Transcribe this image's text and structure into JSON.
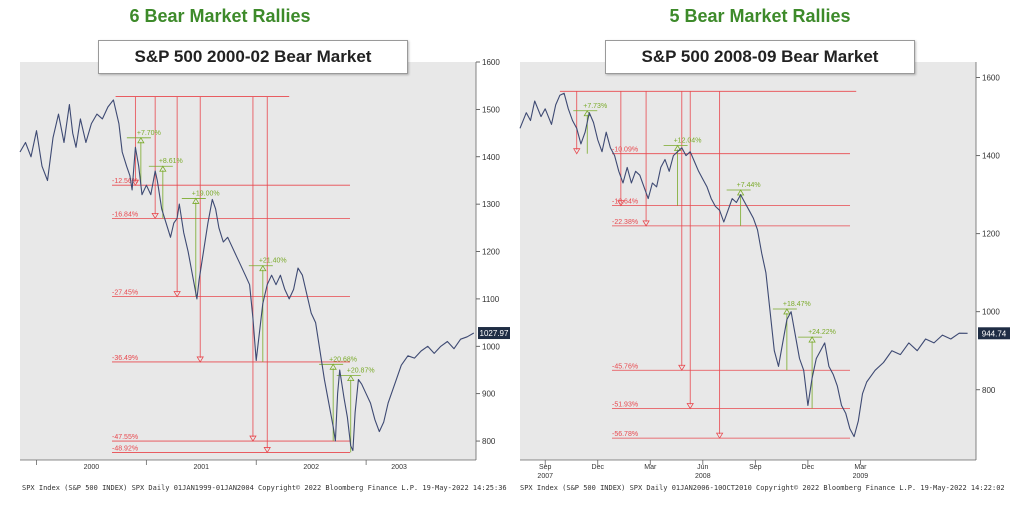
{
  "colors": {
    "headline": "#3d8a2a",
    "drop": "#e8484e",
    "rally": "#7aaa2a",
    "line": "#3e4a73",
    "bg": "#e8e8e8",
    "last": "#1f2d44"
  },
  "chart_data": [
    {
      "type": "line",
      "headline": "6 Bear Market Rallies",
      "title": "S&P 500 2000-02 Bear Market",
      "ylim": [
        760,
        1600
      ],
      "yticks": [
        800,
        900,
        1000,
        1100,
        1200,
        1300,
        1400,
        1500,
        1600
      ],
      "last_value": "1027.97",
      "xlim": [
        1999.85,
        2004.0
      ],
      "xtick_labels": [
        {
          "label": "2000",
          "x": 2000.5
        },
        {
          "label": "2001",
          "x": 2001.5
        },
        {
          "label": "2002",
          "x": 2002.5
        },
        {
          "label": "2003",
          "x": 2003.3
        }
      ],
      "x_dividers": [
        2000.0,
        2001.0,
        2002.0,
        2003.0
      ],
      "series": [
        {
          "points": [
            [
              1999.85,
              1410
            ],
            [
              1999.9,
              1430
            ],
            [
              1999.95,
              1400
            ],
            [
              2000.0,
              1455
            ],
            [
              2000.05,
              1380
            ],
            [
              2000.1,
              1350
            ],
            [
              2000.15,
              1440
            ],
            [
              2000.2,
              1490
            ],
            [
              2000.25,
              1430
            ],
            [
              2000.3,
              1510
            ],
            [
              2000.33,
              1450
            ],
            [
              2000.36,
              1420
            ],
            [
              2000.4,
              1480
            ],
            [
              2000.45,
              1430
            ],
            [
              2000.5,
              1470
            ],
            [
              2000.55,
              1490
            ],
            [
              2000.6,
              1480
            ],
            [
              2000.65,
              1505
            ],
            [
              2000.7,
              1520
            ],
            [
              2000.72,
              1500
            ],
            [
              2000.75,
              1470
            ],
            [
              2000.78,
              1410
            ],
            [
              2000.82,
              1380
            ],
            [
              2000.85,
              1360
            ],
            [
              2000.87,
              1330
            ],
            [
              2000.9,
              1420
            ],
            [
              2000.93,
              1380
            ],
            [
              2000.96,
              1320
            ],
            [
              2001.0,
              1340
            ],
            [
              2001.04,
              1320
            ],
            [
              2001.08,
              1370
            ],
            [
              2001.1,
              1350
            ],
            [
              2001.14,
              1290
            ],
            [
              2001.18,
              1260
            ],
            [
              2001.22,
              1230
            ],
            [
              2001.25,
              1260
            ],
            [
              2001.28,
              1270
            ],
            [
              2001.3,
              1300
            ],
            [
              2001.34,
              1240
            ],
            [
              2001.38,
              1200
            ],
            [
              2001.42,
              1150
            ],
            [
              2001.46,
              1100
            ],
            [
              2001.48,
              1140
            ],
            [
              2001.52,
              1200
            ],
            [
              2001.56,
              1260
            ],
            [
              2001.6,
              1310
            ],
            [
              2001.63,
              1290
            ],
            [
              2001.66,
              1250
            ],
            [
              2001.7,
              1220
            ],
            [
              2001.74,
              1230
            ],
            [
              2001.78,
              1210
            ],
            [
              2001.82,
              1190
            ],
            [
              2001.86,
              1170
            ],
            [
              2001.9,
              1150
            ],
            [
              2001.94,
              1130
            ],
            [
              2001.97,
              1060
            ],
            [
              2002.0,
              970
            ],
            [
              2002.03,
              1030
            ],
            [
              2002.06,
              1090
            ],
            [
              2002.1,
              1130
            ],
            [
              2002.14,
              1150
            ],
            [
              2002.18,
              1130
            ],
            [
              2002.22,
              1150
            ],
            [
              2002.26,
              1120
            ],
            [
              2002.3,
              1100
            ],
            [
              2002.34,
              1120
            ],
            [
              2002.38,
              1165
            ],
            [
              2002.42,
              1150
            ],
            [
              2002.46,
              1110
            ],
            [
              2002.5,
              1070
            ],
            [
              2002.54,
              1050
            ],
            [
              2002.58,
              990
            ],
            [
              2002.62,
              930
            ],
            [
              2002.66,
              880
            ],
            [
              2002.7,
              830
            ],
            [
              2002.72,
              800
            ],
            [
              2002.74,
              900
            ],
            [
              2002.76,
              950
            ],
            [
              2002.78,
              920
            ],
            [
              2002.8,
              890
            ],
            [
              2002.83,
              850
            ],
            [
              2002.86,
              790
            ],
            [
              2002.88,
              780
            ],
            [
              2002.9,
              860
            ],
            [
              2002.93,
              930
            ],
            [
              2002.96,
              920
            ],
            [
              2003.0,
              900
            ],
            [
              2003.04,
              880
            ],
            [
              2003.08,
              845
            ],
            [
              2003.12,
              820
            ],
            [
              2003.16,
              840
            ],
            [
              2003.2,
              880
            ],
            [
              2003.26,
              920
            ],
            [
              2003.32,
              960
            ],
            [
              2003.38,
              980
            ],
            [
              2003.44,
              975
            ],
            [
              2003.5,
              990
            ],
            [
              2003.56,
              1000
            ],
            [
              2003.62,
              985
            ],
            [
              2003.68,
              1000
            ],
            [
              2003.74,
              1010
            ],
            [
              2003.8,
              995
            ],
            [
              2003.86,
              1015
            ],
            [
              2003.92,
              1020
            ],
            [
              2003.98,
              1027.97
            ]
          ]
        }
      ],
      "drawdowns": [
        {
          "label": "-12.56%",
          "x": 2000.9,
          "y": 1340
        },
        {
          "label": "-16.84%",
          "x": 2001.08,
          "y": 1270
        },
        {
          "label": "-27.45%",
          "x": 2001.28,
          "y": 1105
        },
        {
          "label": "-36.49%",
          "x": 2001.49,
          "y": 967
        },
        {
          "label": "-47.55%",
          "x": 2001.97,
          "y": 800
        },
        {
          "label": "-48.92%",
          "x": 2002.1,
          "y": 776
        }
      ],
      "rallies": [
        {
          "label": "+7.70%",
          "x": 2000.95,
          "y0": 1340,
          "y1": 1440
        },
        {
          "label": "+8.61%",
          "x": 2001.15,
          "y0": 1270,
          "y1": 1380
        },
        {
          "label": "+19.00%",
          "x": 2001.45,
          "y0": 1105,
          "y1": 1312
        },
        {
          "label": "+21.40%",
          "x": 2002.06,
          "y0": 967,
          "y1": 1170
        },
        {
          "label": "+20.68%",
          "x": 2002.7,
          "y0": 800,
          "y1": 962
        },
        {
          "label": "+20.87%",
          "x": 2002.86,
          "y0": 776,
          "y1": 938
        }
      ],
      "peak": {
        "value": 1527,
        "x0": 2000.72,
        "x1": 2002.3
      },
      "footer": "SPX Index (S&P 500 INDEX) SPX  Daily 01JAN1999-01JAN2004  Copyright© 2022 Bloomberg Finance L.P.  19-May-2022 14:25:36"
    },
    {
      "type": "line",
      "headline": "5 Bear Market Rallies",
      "title": "S&P 500 2008-09 Bear Market",
      "ylim": [
        620,
        1640
      ],
      "yticks": [
        800,
        1000,
        1200,
        1400,
        1600
      ],
      "last_value": "944.74",
      "xlim": [
        2007.55,
        2009.72
      ],
      "xtick_labels": [
        {
          "label": "Sep",
          "x": 2007.67
        },
        {
          "label": "Dec",
          "x": 2007.92
        },
        {
          "label": "Mar",
          "x": 2008.17
        },
        {
          "label": "Jun",
          "x": 2008.42
        },
        {
          "label": "Sep",
          "x": 2008.67
        },
        {
          "label": "Dec",
          "x": 2008.92
        },
        {
          "label": "Mar",
          "x": 2009.17
        }
      ],
      "x_year_labels": [
        {
          "label": "2007",
          "x": 2007.67
        },
        {
          "label": "2008",
          "x": 2008.42
        },
        {
          "label": "2009",
          "x": 2009.17
        }
      ],
      "x_dividers": [
        2007.67,
        2007.92,
        2008.17,
        2008.42,
        2008.67,
        2008.92,
        2009.17
      ],
      "series": [
        {
          "points": [
            [
              2007.55,
              1470
            ],
            [
              2007.58,
              1510
            ],
            [
              2007.6,
              1490
            ],
            [
              2007.62,
              1540
            ],
            [
              2007.65,
              1500
            ],
            [
              2007.67,
              1520
            ],
            [
              2007.7,
              1480
            ],
            [
              2007.72,
              1530
            ],
            [
              2007.74,
              1555
            ],
            [
              2007.76,
              1560
            ],
            [
              2007.78,
              1520
            ],
            [
              2007.8,
              1490
            ],
            [
              2007.82,
              1470
            ],
            [
              2007.84,
              1430
            ],
            [
              2007.86,
              1460
            ],
            [
              2007.88,
              1510
            ],
            [
              2007.9,
              1485
            ],
            [
              2007.92,
              1440
            ],
            [
              2007.94,
              1410
            ],
            [
              2007.96,
              1460
            ],
            [
              2007.98,
              1420
            ],
            [
              2008.0,
              1400
            ],
            [
              2008.02,
              1360
            ],
            [
              2008.04,
              1330
            ],
            [
              2008.06,
              1370
            ],
            [
              2008.08,
              1330
            ],
            [
              2008.1,
              1360
            ],
            [
              2008.12,
              1350
            ],
            [
              2008.14,
              1320
            ],
            [
              2008.16,
              1290
            ],
            [
              2008.18,
              1330
            ],
            [
              2008.2,
              1320
            ],
            [
              2008.22,
              1370
            ],
            [
              2008.24,
              1390
            ],
            [
              2008.26,
              1360
            ],
            [
              2008.28,
              1400
            ],
            [
              2008.3,
              1410
            ],
            [
              2008.32,
              1420
            ],
            [
              2008.34,
              1400
            ],
            [
              2008.36,
              1410
            ],
            [
              2008.38,
              1385
            ],
            [
              2008.4,
              1360
            ],
            [
              2008.42,
              1340
            ],
            [
              2008.44,
              1320
            ],
            [
              2008.46,
              1290
            ],
            [
              2008.48,
              1270
            ],
            [
              2008.5,
              1260
            ],
            [
              2008.52,
              1230
            ],
            [
              2008.54,
              1260
            ],
            [
              2008.56,
              1290
            ],
            [
              2008.58,
              1280
            ],
            [
              2008.6,
              1300
            ],
            [
              2008.62,
              1280
            ],
            [
              2008.64,
              1260
            ],
            [
              2008.66,
              1240
            ],
            [
              2008.68,
              1210
            ],
            [
              2008.7,
              1150
            ],
            [
              2008.72,
              1100
            ],
            [
              2008.74,
              1000
            ],
            [
              2008.76,
              900
            ],
            [
              2008.78,
              860
            ],
            [
              2008.8,
              920
            ],
            [
              2008.82,
              980
            ],
            [
              2008.84,
              1000
            ],
            [
              2008.86,
              940
            ],
            [
              2008.88,
              880
            ],
            [
              2008.9,
              850
            ],
            [
              2008.92,
              760
            ],
            [
              2008.94,
              830
            ],
            [
              2008.96,
              880
            ],
            [
              2008.98,
              900
            ],
            [
              2009.0,
              920
            ],
            [
              2009.02,
              860
            ],
            [
              2009.04,
              840
            ],
            [
              2009.06,
              810
            ],
            [
              2009.08,
              760
            ],
            [
              2009.1,
              740
            ],
            [
              2009.12,
              700
            ],
            [
              2009.14,
              680
            ],
            [
              2009.16,
              720
            ],
            [
              2009.18,
              790
            ],
            [
              2009.2,
              820
            ],
            [
              2009.24,
              850
            ],
            [
              2009.28,
              870
            ],
            [
              2009.32,
              900
            ],
            [
              2009.36,
              890
            ],
            [
              2009.4,
              920
            ],
            [
              2009.44,
              900
            ],
            [
              2009.48,
              930
            ],
            [
              2009.52,
              920
            ],
            [
              2009.56,
              940
            ],
            [
              2009.6,
              930
            ],
            [
              2009.64,
              945
            ],
            [
              2009.68,
              944.74
            ]
          ]
        }
      ],
      "drawdowns": [
        {
          "label": "-10.09%",
          "x": 2007.82,
          "y": 1405
        },
        {
          "label": "-18.64%",
          "x": 2008.03,
          "y": 1272
        },
        {
          "label": "-22.38%",
          "x": 2008.15,
          "y": 1220
        },
        {
          "label": "-45.76%",
          "x": 2008.32,
          "y": 850
        },
        {
          "label": "-51.93%",
          "x": 2008.36,
          "y": 752
        },
        {
          "label": "-56.78%",
          "x": 2008.5,
          "y": 676
        }
      ],
      "rallies": [
        {
          "label": "+7.73%",
          "x": 2007.87,
          "y0": 1405,
          "y1": 1515
        },
        {
          "label": "+12.04%",
          "x": 2008.3,
          "y0": 1272,
          "y1": 1426
        },
        {
          "label": "+7.44%",
          "x": 2008.6,
          "y0": 1220,
          "y1": 1312
        },
        {
          "label": "+18.47%",
          "x": 2008.82,
          "y0": 850,
          "y1": 1007
        },
        {
          "label": "+24.22%",
          "x": 2008.94,
          "y0": 752,
          "y1": 935
        }
      ],
      "peak": {
        "value": 1565,
        "x0": 2007.74,
        "x1": 2009.15
      },
      "footer": "SPX Index (S&P 500 INDEX) SPX  Daily 01JAN2006-10OCT2010  Copyright© 2022 Bloomberg Finance L.P.  19-May-2022 14:22:02"
    }
  ]
}
